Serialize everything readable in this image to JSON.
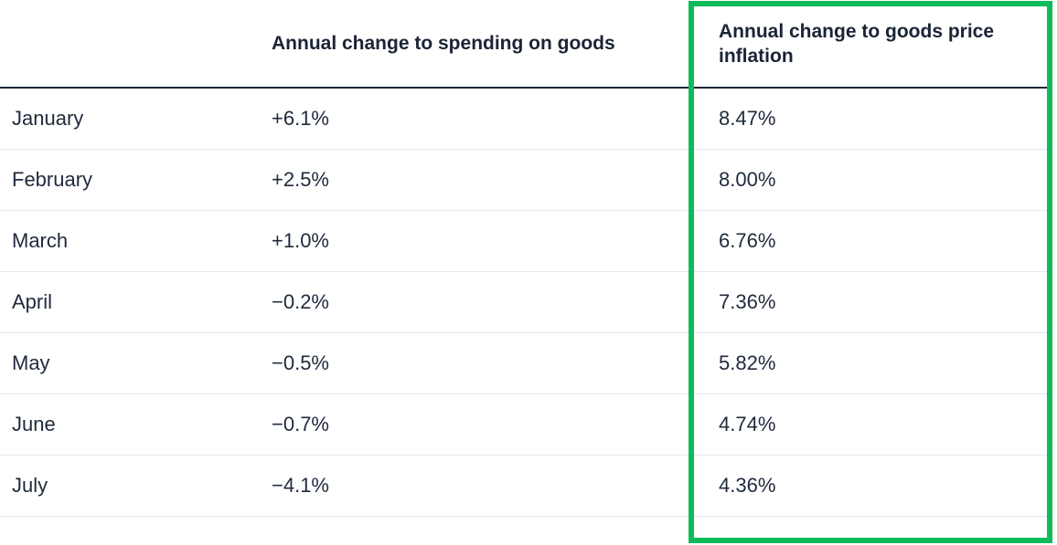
{
  "table": {
    "headers": [
      "",
      "Annual change to spending on goods",
      "Annual change to goods price inflation"
    ],
    "rows": [
      {
        "month": "January",
        "spending_change": "+6.1%",
        "price_inflation_change": "8.47%"
      },
      {
        "month": "February",
        "spending_change": "+2.5%",
        "price_inflation_change": "8.00%"
      },
      {
        "month": "March",
        "spending_change": "+1.0%",
        "price_inflation_change": "6.76%"
      },
      {
        "month": "April",
        "spending_change": "−0.2%",
        "price_inflation_change": "7.36%"
      },
      {
        "month": "May",
        "spending_change": "−0.5%",
        "price_inflation_change": "5.82%"
      },
      {
        "month": "June",
        "spending_change": "−0.7%",
        "price_inflation_change": "4.74%"
      },
      {
        "month": "July",
        "spending_change": "−4.1%",
        "price_inflation_change": "4.36%"
      }
    ]
  },
  "highlight": {
    "target_column": "Annual change to goods price inflation",
    "color": "#0dbb5a"
  },
  "colors": {
    "text": "#1f2a3c",
    "header_rule": "#1d2738",
    "row_rule": "#e3e8f0"
  }
}
